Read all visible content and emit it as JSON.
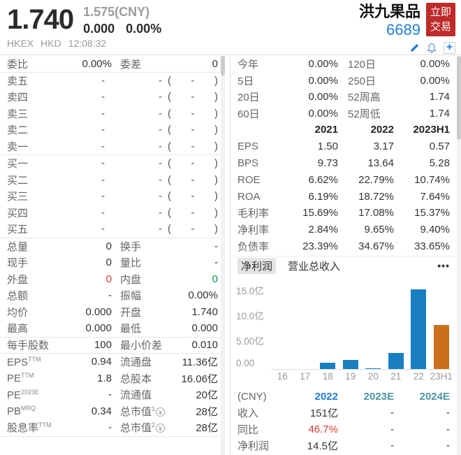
{
  "header": {
    "price": "1.740",
    "ref_price": "1.575(CNY)",
    "change": "0.000",
    "change_pct": "0.00%",
    "exchange": "HKEX",
    "currency": "HKD",
    "time": "12:08:32",
    "stock_name": "洪九果品",
    "stock_code": "6689",
    "trade_button_line1": "立即",
    "trade_button_line2": "交易",
    "accent_red": "#bf2a2a",
    "accent_blue": "#1f7dd4"
  },
  "order_panel": {
    "ratio_row": {
      "l1": "委比",
      "v1": "0.00%",
      "l2": "委差",
      "v2": "0"
    },
    "asks": [
      {
        "label": "卖五",
        "price": "-",
        "vol": "-",
        "orders": "-"
      },
      {
        "label": "卖四",
        "price": "-",
        "vol": "-",
        "orders": "-"
      },
      {
        "label": "卖三",
        "price": "-",
        "vol": "-",
        "orders": "-"
      },
      {
        "label": "卖二",
        "price": "-",
        "vol": "-",
        "orders": "-"
      },
      {
        "label": "卖一",
        "price": "-",
        "vol": "-",
        "orders": "-"
      }
    ],
    "bids": [
      {
        "label": "买一",
        "price": "-",
        "vol": "-",
        "orders": "-"
      },
      {
        "label": "买二",
        "price": "-",
        "vol": "-",
        "orders": "-"
      },
      {
        "label": "买三",
        "price": "-",
        "vol": "-",
        "orders": "-"
      },
      {
        "label": "买四",
        "price": "-",
        "vol": "-",
        "orders": "-"
      },
      {
        "label": "买五",
        "price": "-",
        "vol": "-",
        "orders": "-"
      }
    ],
    "stats": [
      {
        "l1": "总量",
        "v1": "0",
        "l2": "换手",
        "v2": "-"
      },
      {
        "l1": "现手",
        "v1": "0",
        "l2": "量比",
        "v2": "-"
      },
      {
        "l1": "外盘",
        "v1": "0",
        "v1c": "red",
        "l2": "内盘",
        "v2": "0",
        "v2c": "green"
      },
      {
        "l1": "总额",
        "v1": "-",
        "l2": "振幅",
        "v2": "0.00%"
      },
      {
        "l1": "均价",
        "v1": "0.000",
        "l2": "开盘",
        "v2": "1.740"
      },
      {
        "l1": "最高",
        "v1": "0.000",
        "l2": "最低",
        "v2": "0.000"
      }
    ],
    "lot_row": {
      "l1": "每手股数",
      "v1": "100",
      "l2": "最小价差",
      "v2": "0.010"
    },
    "valuation": [
      {
        "l1": "EPS",
        "sup1": "TTM",
        "v1": "0.94",
        "l2": "流通盘",
        "v2": "11.36亿"
      },
      {
        "l1": "PE",
        "sup1": "TTM",
        "v1": "1.8",
        "l2": "总股本",
        "v2": "16.06亿"
      },
      {
        "l1": "PE",
        "sup1": "2023E",
        "v1": "-",
        "l2": "流通值",
        "v2": "20亿"
      },
      {
        "l1": "PB",
        "sup1": "MRQ",
        "v1": "0.34",
        "l2": "总市值",
        "sup2": "1",
        "yen2": true,
        "v2": "28亿"
      },
      {
        "l1": "股息率",
        "sup1": "TTM",
        "v1": "-",
        "l2": "总市值",
        "sup2": "2",
        "yen2": true,
        "v2": "28亿"
      }
    ]
  },
  "right_panel": {
    "performance": [
      {
        "l1": "今年",
        "v1": "0.00%",
        "l2": "120日",
        "v2": "0.00%"
      },
      {
        "l1": "5日",
        "v1": "0.00%",
        "l2": "250日",
        "v2": "0.00%"
      },
      {
        "l1": "20日",
        "v1": "0.00%",
        "l2": "52周高",
        "v2": "1.74"
      },
      {
        "l1": "60日",
        "v1": "0.00%",
        "l2": "52周低",
        "v2": "1.74"
      }
    ],
    "financial_table": {
      "headers": [
        "",
        "2021",
        "2022",
        "2023H1"
      ],
      "rows": [
        {
          "label": "EPS",
          "values": [
            "1.50",
            "3.17",
            "0.57"
          ]
        },
        {
          "label": "BPS",
          "values": [
            "9.73",
            "13.64",
            "5.28"
          ]
        },
        {
          "label": "ROE",
          "values": [
            "6.62%",
            "22.79%",
            "10.74%"
          ]
        },
        {
          "label": "ROA",
          "values": [
            "6.19%",
            "18.72%",
            "7.64%"
          ]
        },
        {
          "label": "毛利率",
          "values": [
            "15.69%",
            "17.08%",
            "15.37%"
          ]
        },
        {
          "label": "净利率",
          "values": [
            "2.84%",
            "9.65%",
            "9.40%"
          ]
        },
        {
          "label": "负债率",
          "values": [
            "23.39%",
            "34.67%",
            "33.65%"
          ]
        }
      ]
    },
    "tabs": [
      {
        "label": "净利润",
        "active": true
      },
      {
        "label": "营业总收入",
        "active": false
      }
    ],
    "more_label": "•••",
    "estimates": {
      "headers": [
        "(CNY)",
        "2022",
        "2023E",
        "2024E"
      ],
      "header_colors": [
        "",
        "blue",
        "teal",
        "teal"
      ],
      "rows": [
        {
          "label": "收入",
          "values": [
            "151亿",
            "-",
            "-"
          ],
          "colors": [
            "",
            "",
            ""
          ]
        },
        {
          "label": "同比",
          "values": [
            "46.7%",
            "-",
            "-"
          ],
          "colors": [
            "red",
            "",
            ""
          ]
        },
        {
          "label": "净利润",
          "values": [
            "14.5亿",
            "-",
            "-"
          ],
          "colors": [
            "",
            "",
            ""
          ]
        }
      ]
    }
  },
  "chart_data": {
    "type": "bar",
    "title": "净利润 (亿)",
    "categories": [
      "16",
      "17",
      "18",
      "19",
      "20",
      "21",
      "22",
      "23H1"
    ],
    "values": [
      0,
      0,
      1.2,
      1.7,
      0.1,
      2.9,
      14.5,
      8.0
    ],
    "unit": "亿",
    "ylim": [
      0,
      15
    ],
    "yticks": [
      "15.0亿",
      "10.0亿",
      "5.00亿",
      "0.00"
    ],
    "grid": false,
    "bar_color": "#1a7fc1",
    "highlight_color": "#cc6f1d",
    "highlight_index": 7
  }
}
